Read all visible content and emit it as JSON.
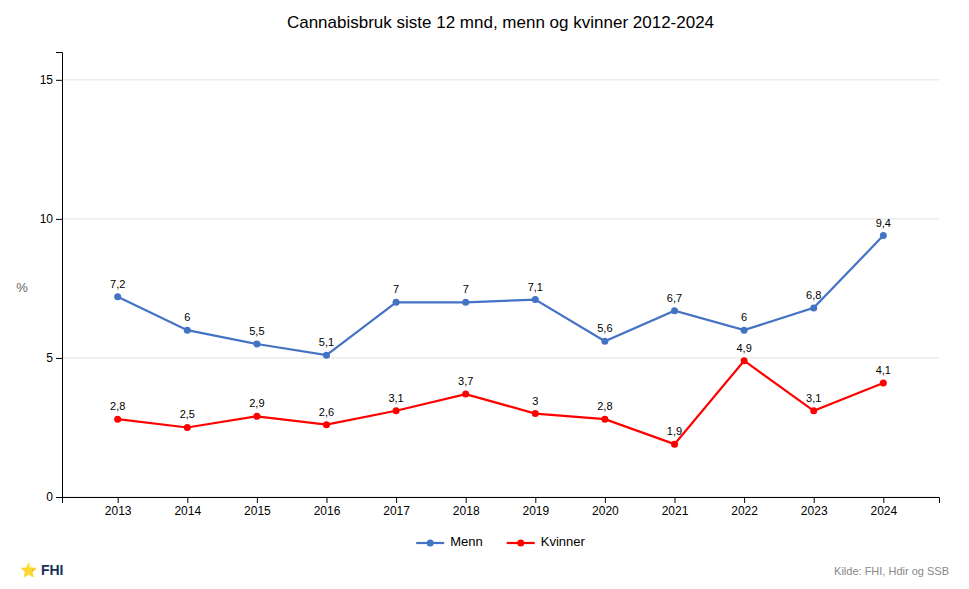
{
  "chart_data": {
    "type": "line",
    "title": "Cannabisbruk siste 12 mnd, menn og kvinner 2012-2024",
    "ylabel": "%",
    "x": [
      2013,
      2014,
      2015,
      2016,
      2017,
      2018,
      2019,
      2020,
      2021,
      2022,
      2023,
      2024
    ],
    "series": [
      {
        "name": "Menn",
        "color": "#4472C4",
        "marker": "circle",
        "values": [
          7.2,
          6.0,
          5.5,
          5.1,
          7.0,
          7.0,
          7.1,
          5.6,
          6.7,
          6.0,
          6.8,
          9.4
        ],
        "value_labels": [
          "7,2",
          "6",
          "5,5",
          "5,1",
          "7",
          "7",
          "7,1",
          "5,6",
          "6,7",
          "6",
          "6,8",
          "9,4"
        ]
      },
      {
        "name": "Kvinner",
        "color": "#FF0000",
        "marker": "circle",
        "values": [
          2.8,
          2.5,
          2.9,
          2.6,
          3.1,
          3.7,
          3.0,
          2.8,
          1.9,
          4.9,
          3.1,
          4.1
        ],
        "value_labels": [
          "2,8",
          "2,5",
          "2,9",
          "2,6",
          "3,1",
          "3,7",
          "3",
          "2,8",
          "1,9",
          "4,9",
          "3,1",
          "4,1"
        ]
      }
    ],
    "xlim": [
      2012.2,
      2024.8
    ],
    "xticks": [
      2013,
      2014,
      2015,
      2016,
      2017,
      2018,
      2019,
      2020,
      2021,
      2022,
      2023,
      2024
    ],
    "ylim": [
      0,
      16
    ],
    "yticks": [
      0,
      5,
      10,
      15
    ],
    "grid": true,
    "data_labels": true,
    "legend": "bottom",
    "annotations": [
      "Kilde: FHI, Hdir og SSB",
      "⭐ FHI"
    ]
  }
}
